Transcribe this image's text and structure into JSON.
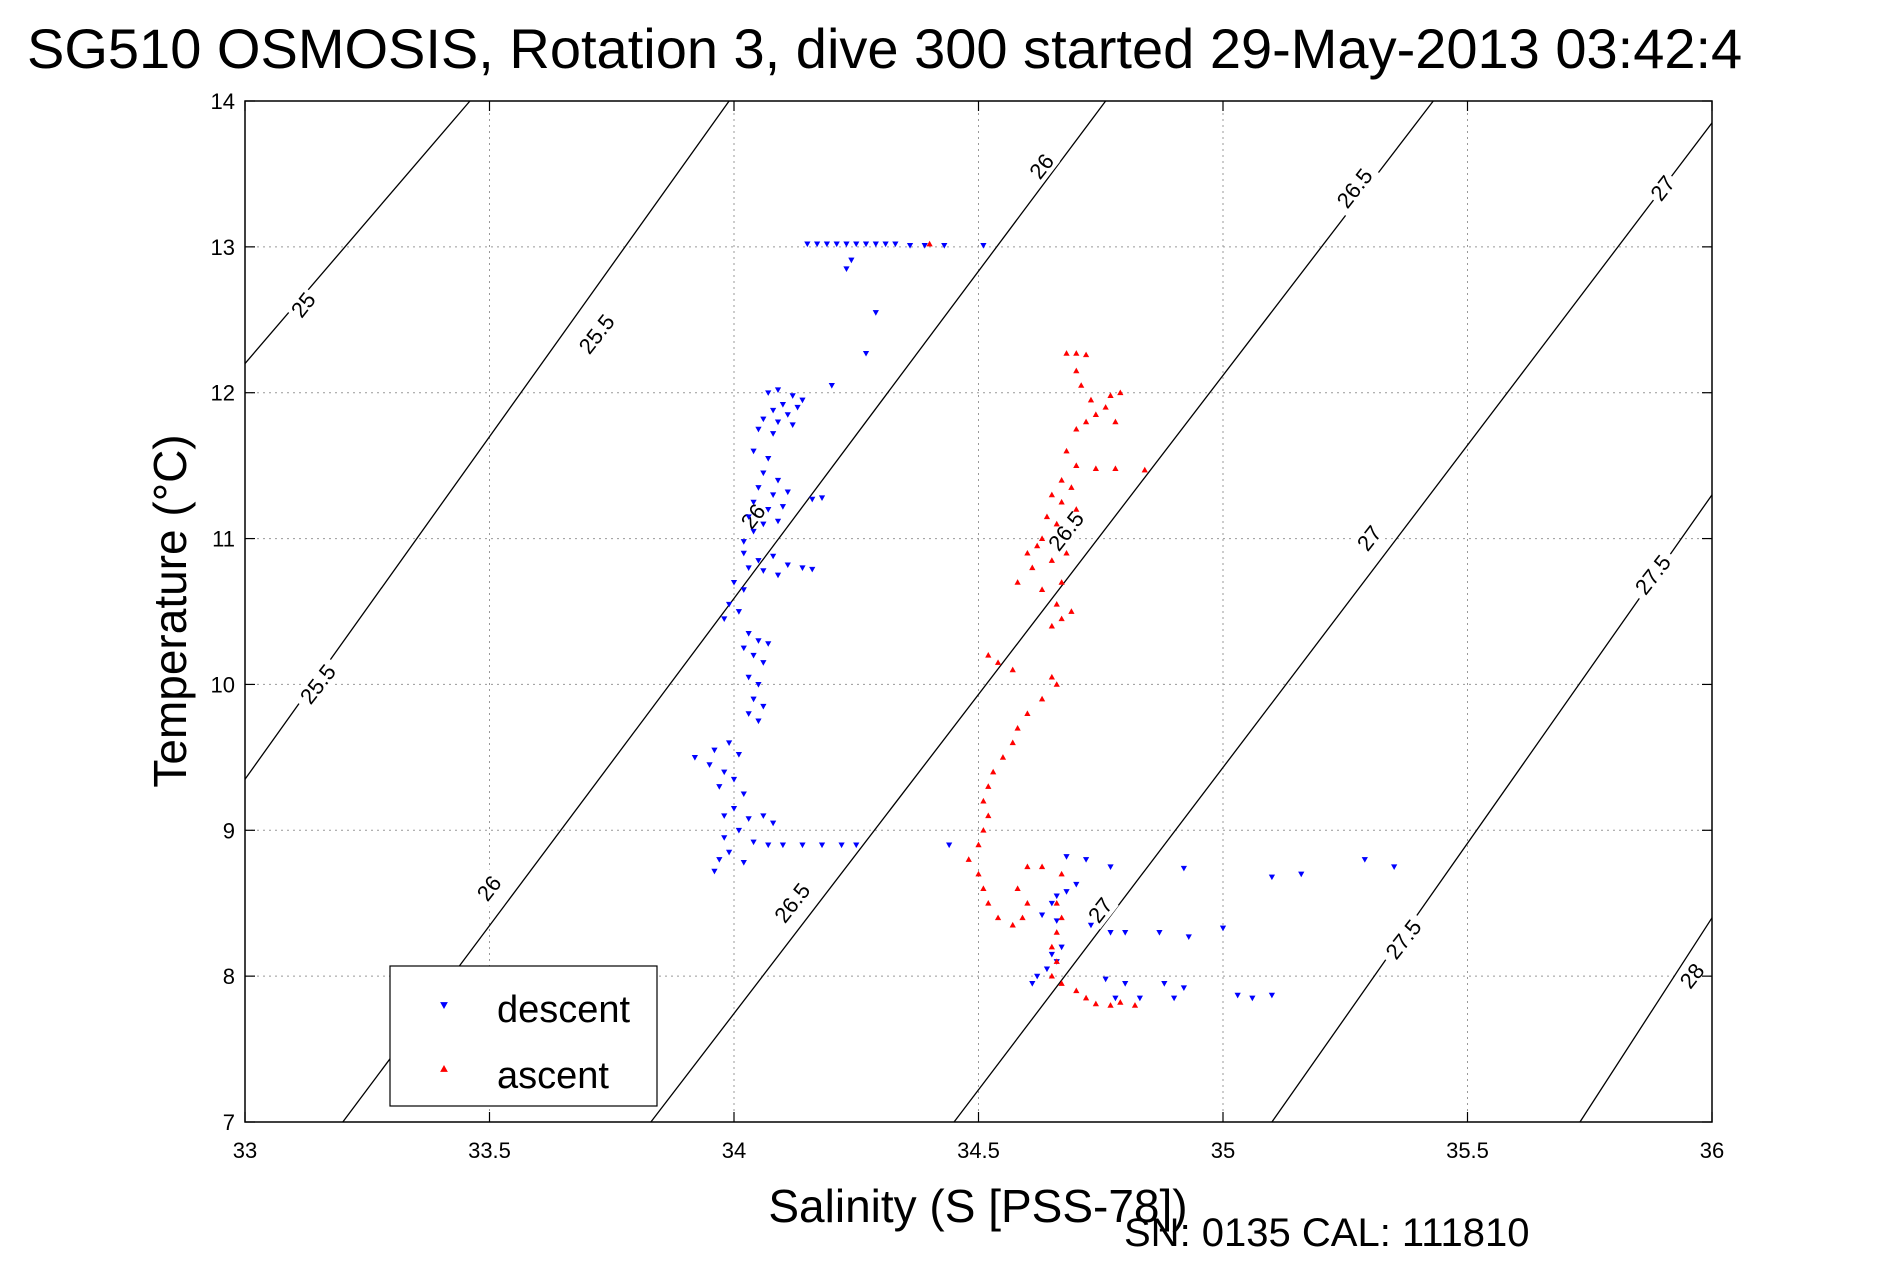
{
  "chart_data": {
    "type": "scatter",
    "title": "SG510 OSMOSIS, Rotation 3, dive 300 started 29-May-2013 03:42:4",
    "xlabel": "Salinity (S [PSS-78])",
    "ylabel": "Temperature (°C)",
    "xlim": [
      33,
      36
    ],
    "ylim": [
      7,
      14
    ],
    "xticks": [
      33,
      33.5,
      34,
      34.5,
      35,
      35.5,
      36
    ],
    "xtick_labels": [
      "33",
      "33.5",
      "34",
      "34.5",
      "35",
      "35.5",
      "36"
    ],
    "yticks": [
      7,
      8,
      9,
      10,
      11,
      12,
      13,
      14
    ],
    "ytick_labels": [
      "7",
      "8",
      "9",
      "10",
      "11",
      "12",
      "13",
      "14"
    ],
    "grid": true,
    "legend_position": "bottom-left",
    "density_contours": [
      {
        "level": "25",
        "x": [
          33.0,
          33.46
        ],
        "y": [
          12.2,
          14.0
        ]
      },
      {
        "level": "25.5",
        "x": [
          33.0,
          33.99
        ],
        "y": [
          9.35,
          14.0
        ]
      },
      {
        "level": "26",
        "x": [
          33.2,
          34.76
        ],
        "y": [
          7.0,
          14.0
        ]
      },
      {
        "level": "26.5",
        "x": [
          33.83,
          35.43
        ],
        "y": [
          7.0,
          14.0
        ]
      },
      {
        "level": "27",
        "x": [
          34.45,
          36.0
        ],
        "y": [
          7.0,
          13.85
        ]
      },
      {
        "level": "27.5",
        "x": [
          35.1,
          36.0
        ],
        "y": [
          7.0,
          11.3
        ]
      },
      {
        "level": "28",
        "x": [
          35.73,
          36.0
        ],
        "y": [
          7.0,
          8.4
        ]
      }
    ],
    "contour_labels": [
      {
        "text": "25",
        "x": 33.12,
        "y": 12.6,
        "angle": -52
      },
      {
        "text": "25.5",
        "x": 33.72,
        "y": 12.4,
        "angle": -52
      },
      {
        "text": "26",
        "x": 34.63,
        "y": 13.55,
        "angle": -52
      },
      {
        "text": "26.5",
        "x": 35.27,
        "y": 13.4,
        "angle": -52
      },
      {
        "text": "27",
        "x": 35.9,
        "y": 13.4,
        "angle": -52
      },
      {
        "text": "25.5",
        "x": 33.15,
        "y": 10.0,
        "angle": -52
      },
      {
        "text": "26",
        "x": 34.04,
        "y": 11.15,
        "angle": -52
      },
      {
        "text": "26.5",
        "x": 34.68,
        "y": 11.05,
        "angle": -52
      },
      {
        "text": "27",
        "x": 35.3,
        "y": 11.0,
        "angle": -52
      },
      {
        "text": "27.5",
        "x": 35.88,
        "y": 10.75,
        "angle": -52
      },
      {
        "text": "26",
        "x": 33.5,
        "y": 8.6,
        "angle": -52
      },
      {
        "text": "26.5",
        "x": 34.12,
        "y": 8.5,
        "angle": -52
      },
      {
        "text": "27",
        "x": 34.75,
        "y": 8.45,
        "angle": -52
      },
      {
        "text": "27.5",
        "x": 35.37,
        "y": 8.25,
        "angle": -52
      },
      {
        "text": "28",
        "x": 35.96,
        "y": 8.0,
        "angle": -52
      }
    ],
    "series": [
      {
        "name": "descent",
        "marker": "triangle-down",
        "color": "#0000ff",
        "points": [
          [
            34.15,
            13.02
          ],
          [
            34.17,
            13.02
          ],
          [
            34.19,
            13.02
          ],
          [
            34.21,
            13.02
          ],
          [
            34.23,
            13.02
          ],
          [
            34.25,
            13.02
          ],
          [
            34.27,
            13.02
          ],
          [
            34.29,
            13.02
          ],
          [
            34.31,
            13.02
          ],
          [
            34.33,
            13.02
          ],
          [
            34.36,
            13.01
          ],
          [
            34.39,
            13.01
          ],
          [
            34.43,
            13.01
          ],
          [
            34.51,
            13.01
          ],
          [
            34.24,
            12.91
          ],
          [
            34.23,
            12.85
          ],
          [
            34.29,
            12.55
          ],
          [
            34.27,
            12.27
          ],
          [
            34.2,
            12.05
          ],
          [
            34.07,
            12.0
          ],
          [
            34.09,
            12.02
          ],
          [
            34.12,
            11.98
          ],
          [
            34.14,
            11.95
          ],
          [
            34.1,
            11.92
          ],
          [
            34.08,
            11.88
          ],
          [
            34.11,
            11.85
          ],
          [
            34.13,
            11.9
          ],
          [
            34.06,
            11.82
          ],
          [
            34.09,
            11.8
          ],
          [
            34.12,
            11.78
          ],
          [
            34.05,
            11.75
          ],
          [
            34.08,
            11.72
          ],
          [
            34.04,
            11.6
          ],
          [
            34.07,
            11.55
          ],
          [
            34.06,
            11.45
          ],
          [
            34.09,
            11.4
          ],
          [
            34.05,
            11.35
          ],
          [
            34.08,
            11.3
          ],
          [
            34.11,
            11.32
          ],
          [
            34.04,
            11.25
          ],
          [
            34.07,
            11.2
          ],
          [
            34.1,
            11.22
          ],
          [
            34.03,
            11.15
          ],
          [
            34.06,
            11.1
          ],
          [
            34.09,
            11.12
          ],
          [
            34.04,
            11.05
          ],
          [
            34.02,
            10.98
          ],
          [
            34.16,
            11.27
          ],
          [
            34.18,
            11.28
          ],
          [
            34.02,
            10.9
          ],
          [
            34.05,
            10.85
          ],
          [
            34.08,
            10.88
          ],
          [
            34.11,
            10.82
          ],
          [
            34.14,
            10.8
          ],
          [
            34.16,
            10.79
          ],
          [
            34.03,
            10.8
          ],
          [
            34.06,
            10.78
          ],
          [
            34.09,
            10.75
          ],
          [
            34.0,
            10.7
          ],
          [
            34.02,
            10.65
          ],
          [
            33.99,
            10.55
          ],
          [
            34.01,
            10.5
          ],
          [
            33.98,
            10.45
          ],
          [
            34.03,
            10.35
          ],
          [
            34.05,
            10.3
          ],
          [
            34.07,
            10.28
          ],
          [
            34.02,
            10.25
          ],
          [
            34.04,
            10.2
          ],
          [
            34.06,
            10.15
          ],
          [
            34.03,
            10.05
          ],
          [
            34.05,
            10.0
          ],
          [
            34.04,
            9.9
          ],
          [
            34.06,
            9.85
          ],
          [
            34.03,
            9.8
          ],
          [
            34.05,
            9.75
          ],
          [
            33.99,
            9.6
          ],
          [
            33.96,
            9.55
          ],
          [
            34.01,
            9.52
          ],
          [
            33.92,
            9.5
          ],
          [
            33.95,
            9.45
          ],
          [
            33.98,
            9.4
          ],
          [
            34.0,
            9.35
          ],
          [
            33.97,
            9.3
          ],
          [
            34.02,
            9.25
          ],
          [
            34.0,
            9.15
          ],
          [
            33.98,
            9.1
          ],
          [
            34.03,
            9.08
          ],
          [
            34.06,
            9.1
          ],
          [
            34.08,
            9.05
          ],
          [
            34.01,
            9.0
          ],
          [
            33.98,
            8.95
          ],
          [
            34.04,
            8.92
          ],
          [
            34.07,
            8.9
          ],
          [
            34.1,
            8.9
          ],
          [
            34.14,
            8.9
          ],
          [
            34.18,
            8.9
          ],
          [
            34.22,
            8.9
          ],
          [
            34.25,
            8.9
          ],
          [
            33.99,
            8.85
          ],
          [
            33.97,
            8.8
          ],
          [
            34.02,
            8.78
          ],
          [
            33.96,
            8.72
          ],
          [
            34.44,
            8.9
          ],
          [
            34.68,
            8.82
          ],
          [
            34.72,
            8.8
          ],
          [
            34.77,
            8.75
          ],
          [
            34.92,
            8.74
          ],
          [
            35.1,
            8.68
          ],
          [
            35.16,
            8.7
          ],
          [
            35.29,
            8.8
          ],
          [
            35.35,
            8.75
          ],
          [
            34.7,
            8.63
          ],
          [
            34.68,
            8.58
          ],
          [
            34.66,
            8.55
          ],
          [
            34.65,
            8.5
          ],
          [
            34.63,
            8.42
          ],
          [
            34.66,
            8.38
          ],
          [
            34.73,
            8.35
          ],
          [
            34.77,
            8.3
          ],
          [
            34.8,
            8.3
          ],
          [
            34.87,
            8.3
          ],
          [
            34.93,
            8.27
          ],
          [
            35.0,
            8.33
          ],
          [
            34.67,
            8.2
          ],
          [
            34.65,
            8.15
          ],
          [
            34.66,
            8.1
          ],
          [
            34.64,
            8.05
          ],
          [
            34.62,
            8.0
          ],
          [
            34.61,
            7.95
          ],
          [
            34.76,
            7.98
          ],
          [
            34.8,
            7.95
          ],
          [
            34.88,
            7.95
          ],
          [
            34.92,
            7.92
          ],
          [
            34.78,
            7.85
          ],
          [
            34.83,
            7.85
          ],
          [
            34.9,
            7.85
          ],
          [
            35.03,
            7.87
          ],
          [
            35.06,
            7.85
          ],
          [
            35.1,
            7.87
          ]
        ]
      },
      {
        "name": "ascent",
        "marker": "triangle-up",
        "color": "#ff0000",
        "points": [
          [
            34.4,
            13.02
          ],
          [
            34.68,
            12.27
          ],
          [
            34.7,
            12.27
          ],
          [
            34.72,
            12.26
          ],
          [
            34.7,
            12.15
          ],
          [
            34.71,
            12.05
          ],
          [
            34.73,
            11.95
          ],
          [
            34.77,
            11.98
          ],
          [
            34.79,
            12.0
          ],
          [
            34.76,
            11.9
          ],
          [
            34.74,
            11.85
          ],
          [
            34.72,
            11.8
          ],
          [
            34.7,
            11.75
          ],
          [
            34.78,
            11.8
          ],
          [
            34.68,
            11.6
          ],
          [
            34.7,
            11.5
          ],
          [
            34.74,
            11.48
          ],
          [
            34.78,
            11.48
          ],
          [
            34.84,
            11.47
          ],
          [
            34.67,
            11.4
          ],
          [
            34.69,
            11.35
          ],
          [
            34.65,
            11.3
          ],
          [
            34.67,
            11.25
          ],
          [
            34.7,
            11.2
          ],
          [
            34.64,
            11.15
          ],
          [
            34.66,
            11.1
          ],
          [
            34.63,
            11.0
          ],
          [
            34.62,
            10.95
          ],
          [
            34.6,
            10.9
          ],
          [
            34.65,
            10.85
          ],
          [
            34.68,
            10.9
          ],
          [
            34.61,
            10.8
          ],
          [
            34.58,
            10.7
          ],
          [
            34.63,
            10.65
          ],
          [
            34.67,
            10.7
          ],
          [
            34.66,
            10.55
          ],
          [
            34.69,
            10.5
          ],
          [
            34.67,
            10.45
          ],
          [
            34.65,
            10.4
          ],
          [
            34.52,
            10.2
          ],
          [
            34.54,
            10.15
          ],
          [
            34.57,
            10.1
          ],
          [
            34.65,
            10.05
          ],
          [
            34.66,
            10.0
          ],
          [
            34.63,
            9.9
          ],
          [
            34.6,
            9.8
          ],
          [
            34.58,
            9.7
          ],
          [
            34.57,
            9.6
          ],
          [
            34.55,
            9.5
          ],
          [
            34.53,
            9.4
          ],
          [
            34.52,
            9.3
          ],
          [
            34.51,
            9.2
          ],
          [
            34.52,
            9.1
          ],
          [
            34.51,
            9.0
          ],
          [
            34.5,
            8.9
          ],
          [
            34.48,
            8.8
          ],
          [
            34.5,
            8.7
          ],
          [
            34.51,
            8.6
          ],
          [
            34.52,
            8.5
          ],
          [
            34.54,
            8.4
          ],
          [
            34.57,
            8.35
          ],
          [
            34.59,
            8.4
          ],
          [
            34.6,
            8.5
          ],
          [
            34.58,
            8.6
          ],
          [
            34.6,
            8.75
          ],
          [
            34.63,
            8.75
          ],
          [
            34.67,
            8.7
          ],
          [
            34.66,
            8.5
          ],
          [
            34.67,
            8.4
          ],
          [
            34.66,
            8.3
          ],
          [
            34.65,
            8.2
          ],
          [
            34.66,
            8.1
          ],
          [
            34.65,
            8.0
          ],
          [
            34.67,
            7.95
          ],
          [
            34.7,
            7.9
          ],
          [
            34.72,
            7.85
          ],
          [
            34.74,
            7.81
          ],
          [
            34.77,
            7.8
          ],
          [
            34.79,
            7.82
          ],
          [
            34.82,
            7.8
          ]
        ]
      }
    ]
  },
  "legend": {
    "descent_label": "descent",
    "ascent_label": "ascent"
  },
  "footer": {
    "sn_cal": "SN: 0135  CAL: 111810"
  }
}
